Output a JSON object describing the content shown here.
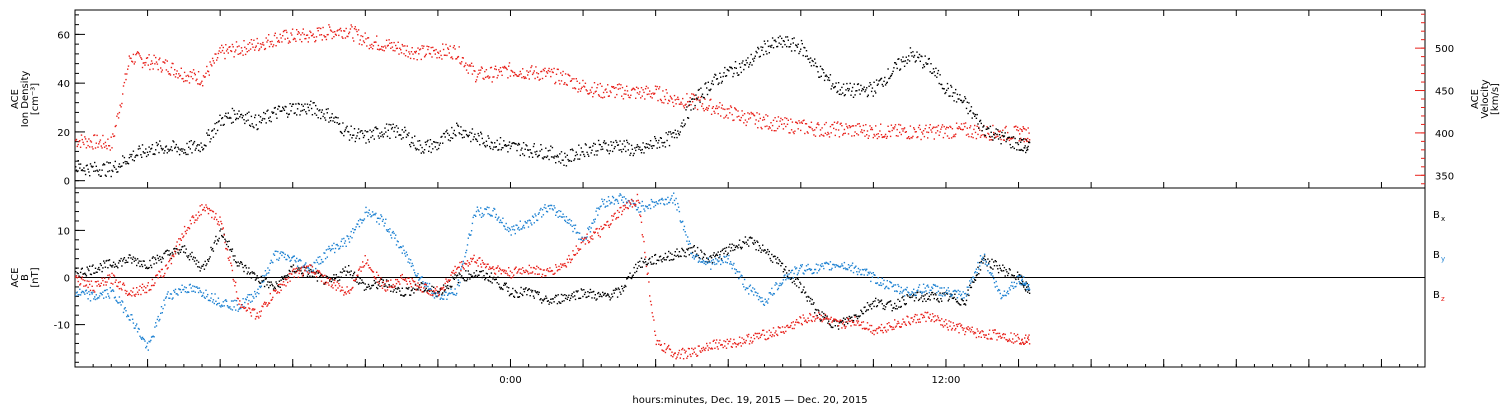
{
  "chart_data": [
    {
      "type": "scatter",
      "panel": "top",
      "left_axis": {
        "label_lines": [
          "ACE",
          "Ion Density",
          "[cm⁻³]"
        ],
        "ylim": [
          -3,
          70
        ],
        "ticks": [
          0,
          20,
          40,
          60
        ],
        "color": "#000000"
      },
      "right_axis": {
        "label_lines": [
          "ACE",
          "Velocity",
          "[km/s]"
        ],
        "ylim": [
          335,
          545
        ],
        "ticks": [
          350,
          400,
          450,
          500
        ],
        "color": "#e8201a"
      },
      "series": [
        {
          "color": "#000000",
          "axis": "left",
          "points": [
            [
              -12,
              6
            ],
            [
              -11.5,
              5
            ],
            [
              -11,
              5
            ],
            [
              -10.5,
              10
            ],
            [
              -10,
              13
            ],
            [
              -9.5,
              14
            ],
            [
              -9,
              13
            ],
            [
              -8.5,
              15
            ],
            [
              -8,
              25
            ],
            [
              -7.5,
              28
            ],
            [
              -7,
              24
            ],
            [
              -6.5,
              28
            ],
            [
              -6,
              30
            ],
            [
              -5.5,
              30
            ],
            [
              -5,
              27
            ],
            [
              -4.5,
              20
            ],
            [
              -4,
              18
            ],
            [
              -3.5,
              21
            ],
            [
              -3,
              20
            ],
            [
              -2.5,
              14
            ],
            [
              -2,
              15
            ],
            [
              -1.5,
              22
            ],
            [
              -1,
              18
            ],
            [
              -0.5,
              16
            ],
            [
              0,
              14
            ],
            [
              0.5,
              13
            ],
            [
              1,
              12
            ],
            [
              1.5,
              9
            ],
            [
              2,
              13
            ],
            [
              2.5,
              14
            ],
            [
              3,
              15
            ],
            [
              3.5,
              12
            ],
            [
              4,
              16
            ],
            [
              4.5,
              18
            ],
            [
              5,
              32
            ],
            [
              5.5,
              40
            ],
            [
              6,
              45
            ],
            [
              6.5,
              48
            ],
            [
              7,
              55
            ],
            [
              7.5,
              57
            ],
            [
              8,
              55
            ],
            [
              8.5,
              45
            ],
            [
              9,
              38
            ],
            [
              9.5,
              37
            ],
            [
              10,
              38
            ],
            [
              10.5,
              45
            ],
            [
              11,
              52
            ],
            [
              11.5,
              48
            ],
            [
              12,
              38
            ],
            [
              12.5,
              32
            ],
            [
              13,
              22
            ],
            [
              13.5,
              18
            ],
            [
              14,
              15
            ],
            [
              14.3,
              14
            ]
          ]
        },
        {
          "color": "#e8201a",
          "axis": "right",
          "points": [
            [
              -12,
              392
            ],
            [
              -11.5,
              390
            ],
            [
              -11,
              388
            ],
            [
              -10.5,
              490
            ],
            [
              -10,
              485
            ],
            [
              -9.5,
              480
            ],
            [
              -9,
              470
            ],
            [
              -8.5,
              465
            ],
            [
              -8,
              495
            ],
            [
              -7.5,
              500
            ],
            [
              -7,
              505
            ],
            [
              -6.5,
              512
            ],
            [
              -6,
              515
            ],
            [
              -5.5,
              515
            ],
            [
              -5,
              520
            ],
            [
              -4.5,
              522
            ],
            [
              -4,
              510
            ],
            [
              -3.5,
              505
            ],
            [
              -3,
              500
            ],
            [
              -2.5,
              495
            ],
            [
              -2,
              497
            ],
            [
              -1.5,
              497
            ],
            [
              -1,
              470
            ],
            [
              -0.5,
              470
            ],
            [
              0,
              475
            ],
            [
              0.5,
              472
            ],
            [
              1,
              470
            ],
            [
              1.5,
              465
            ],
            [
              2,
              455
            ],
            [
              2.5,
              450
            ],
            [
              3,
              450
            ],
            [
              3.5,
              448
            ],
            [
              4,
              448
            ],
            [
              4.5,
              440
            ],
            [
              5,
              438
            ],
            [
              5.5,
              432
            ],
            [
              6,
              425
            ],
            [
              6.5,
              418
            ],
            [
              7,
              414
            ],
            [
              7.5,
              410
            ],
            [
              8,
              408
            ],
            [
              8.5,
              405
            ],
            [
              9,
              405
            ],
            [
              9.5,
              404
            ],
            [
              10,
              403
            ],
            [
              10.5,
              402
            ],
            [
              11,
              402
            ],
            [
              11.5,
              402
            ],
            [
              12,
              403
            ],
            [
              12.5,
              404
            ],
            [
              13,
              402
            ],
            [
              13.5,
              400
            ],
            [
              14,
              400
            ],
            [
              14.3,
              399
            ]
          ]
        }
      ]
    },
    {
      "type": "scatter",
      "panel": "bottom",
      "left_axis": {
        "label_lines": [
          "ACE",
          "B",
          "[nT]"
        ],
        "ylim": [
          -19,
          19
        ],
        "ticks": [
          -10,
          0,
          10
        ],
        "color": "#000000"
      },
      "zero_line": true,
      "legend": [
        {
          "label": "B",
          "sub": "x",
          "color": "#000000"
        },
        {
          "label": "B",
          "sub": "y",
          "color": "#1e82d2"
        },
        {
          "label": "B",
          "sub": "z",
          "color": "#e8201a"
        }
      ],
      "series": [
        {
          "color": "#000000",
          "points": [
            [
              -12,
              1
            ],
            [
              -11.5,
              2
            ],
            [
              -11,
              3
            ],
            [
              -10.5,
              4
            ],
            [
              -10,
              3
            ],
            [
              -9.5,
              5
            ],
            [
              -9,
              6
            ],
            [
              -8.5,
              2
            ],
            [
              -8,
              10
            ],
            [
              -7.5,
              3
            ],
            [
              -7,
              0
            ],
            [
              -6.5,
              -2
            ],
            [
              -6,
              2
            ],
            [
              -5.5,
              1
            ],
            [
              -5,
              -1
            ],
            [
              -4.5,
              2
            ],
            [
              -4,
              -2
            ],
            [
              -3.5,
              -1
            ],
            [
              -3,
              -3
            ],
            [
              -2.5,
              -2
            ],
            [
              -2,
              -3
            ],
            [
              -1.5,
              0
            ],
            [
              -1,
              1
            ],
            [
              -0.5,
              0
            ],
            [
              0,
              -3
            ],
            [
              0.5,
              -3
            ],
            [
              1,
              -5
            ],
            [
              1.5,
              -4
            ],
            [
              2,
              -3
            ],
            [
              2.5,
              -4
            ],
            [
              3,
              -3
            ],
            [
              3.5,
              3
            ],
            [
              4,
              4
            ],
            [
              4.5,
              5
            ],
            [
              5,
              6
            ],
            [
              5.5,
              4
            ],
            [
              6,
              6
            ],
            [
              6.5,
              8
            ],
            [
              7,
              6
            ],
            [
              7.5,
              2
            ],
            [
              8,
              -2
            ],
            [
              8.5,
              -8
            ],
            [
              9,
              -10
            ],
            [
              9.5,
              -8
            ],
            [
              10,
              -5
            ],
            [
              10.5,
              -6
            ],
            [
              11,
              -4
            ],
            [
              11.5,
              -4
            ],
            [
              12,
              -4
            ],
            [
              12.5,
              -5
            ],
            [
              13,
              4
            ],
            [
              13.5,
              2
            ],
            [
              14,
              0
            ],
            [
              14.3,
              -3
            ]
          ]
        },
        {
          "color": "#1e82d2",
          "points": [
            [
              -12,
              -3
            ],
            [
              -11.5,
              -4
            ],
            [
              -11,
              -3
            ],
            [
              -10.5,
              -8
            ],
            [
              -10,
              -15
            ],
            [
              -9.5,
              -4
            ],
            [
              -9,
              -2
            ],
            [
              -8.5,
              -3
            ],
            [
              -8,
              -5
            ],
            [
              -7.5,
              -6
            ],
            [
              -7,
              -3
            ],
            [
              -6.5,
              5
            ],
            [
              -6,
              4
            ],
            [
              -5.5,
              2
            ],
            [
              -5,
              6
            ],
            [
              -4.5,
              8
            ],
            [
              -4,
              14
            ],
            [
              -3.5,
              12
            ],
            [
              -3,
              6
            ],
            [
              -2.5,
              0
            ],
            [
              -2,
              -4
            ],
            [
              -1.5,
              -3
            ],
            [
              -1,
              14
            ],
            [
              -0.5,
              14
            ],
            [
              0,
              10
            ],
            [
              0.5,
              12
            ],
            [
              1,
              15
            ],
            [
              1.5,
              13
            ],
            [
              2,
              8
            ],
            [
              2.5,
              16
            ],
            [
              3,
              17
            ],
            [
              3.5,
              15
            ],
            [
              4,
              16
            ],
            [
              4.5,
              17
            ],
            [
              5,
              5
            ],
            [
              5.5,
              3
            ],
            [
              6,
              4
            ],
            [
              6.5,
              -2
            ],
            [
              7,
              -5
            ],
            [
              7.5,
              0
            ],
            [
              8,
              2
            ],
            [
              8.5,
              2
            ],
            [
              9,
              3
            ],
            [
              9.5,
              2
            ],
            [
              10,
              0
            ],
            [
              10.5,
              -2
            ],
            [
              11,
              -3
            ],
            [
              11.5,
              -2
            ],
            [
              12,
              -3
            ],
            [
              12.5,
              -4
            ],
            [
              13,
              5
            ],
            [
              13.5,
              -4
            ],
            [
              14,
              0
            ],
            [
              14.3,
              -2
            ]
          ]
        },
        {
          "color": "#e8201a",
          "points": [
            [
              -12,
              0
            ],
            [
              -11.5,
              -2
            ],
            [
              -11,
              0
            ],
            [
              -10.5,
              -3
            ],
            [
              -10,
              -2
            ],
            [
              -9.5,
              2
            ],
            [
              -9,
              10
            ],
            [
              -8.5,
              15
            ],
            [
              -8,
              12
            ],
            [
              -7.5,
              -5
            ],
            [
              -7,
              -8
            ],
            [
              -6.5,
              -3
            ],
            [
              -6,
              1
            ],
            [
              -5.5,
              2
            ],
            [
              -5,
              -1
            ],
            [
              -4.5,
              -3
            ],
            [
              -4,
              4
            ],
            [
              -3.5,
              -2
            ],
            [
              -3,
              0
            ],
            [
              -2.5,
              -2
            ],
            [
              -2,
              -3
            ],
            [
              -1.5,
              2
            ],
            [
              -1,
              4
            ],
            [
              -0.5,
              2
            ],
            [
              0,
              1
            ],
            [
              0.5,
              2
            ],
            [
              1,
              1
            ],
            [
              1.5,
              3
            ],
            [
              2,
              8
            ],
            [
              2.5,
              10
            ],
            [
              3,
              14
            ],
            [
              3.5,
              17
            ],
            [
              4,
              -14
            ],
            [
              4.5,
              -16
            ],
            [
              5,
              -16
            ],
            [
              5.5,
              -14
            ],
            [
              6,
              -14
            ],
            [
              6.5,
              -13
            ],
            [
              7,
              -12
            ],
            [
              7.5,
              -11
            ],
            [
              8,
              -9
            ],
            [
              8.5,
              -8
            ],
            [
              9,
              -10
            ],
            [
              9.5,
              -9
            ],
            [
              10,
              -11
            ],
            [
              10.5,
              -10
            ],
            [
              11,
              -9
            ],
            [
              11.5,
              -8
            ],
            [
              12,
              -10
            ],
            [
              12.5,
              -11
            ],
            [
              13,
              -12
            ],
            [
              13.5,
              -12
            ],
            [
              14,
              -13
            ],
            [
              14.3,
              -13
            ]
          ]
        }
      ]
    }
  ],
  "x_axis": {
    "xlim": [
      -12,
      25.2
    ],
    "tick_labels": [
      {
        "x": 0,
        "label": "0:00"
      },
      {
        "x": 12,
        "label": "12:00"
      }
    ],
    "major_ticks": [
      -10,
      -8,
      -6,
      -4,
      -2,
      0,
      2,
      4,
      6,
      8,
      10,
      12,
      14,
      16,
      18,
      20,
      22,
      24
    ],
    "title": "hours:minutes, Dec. 19, 2015 — Dec. 20, 2015"
  }
}
